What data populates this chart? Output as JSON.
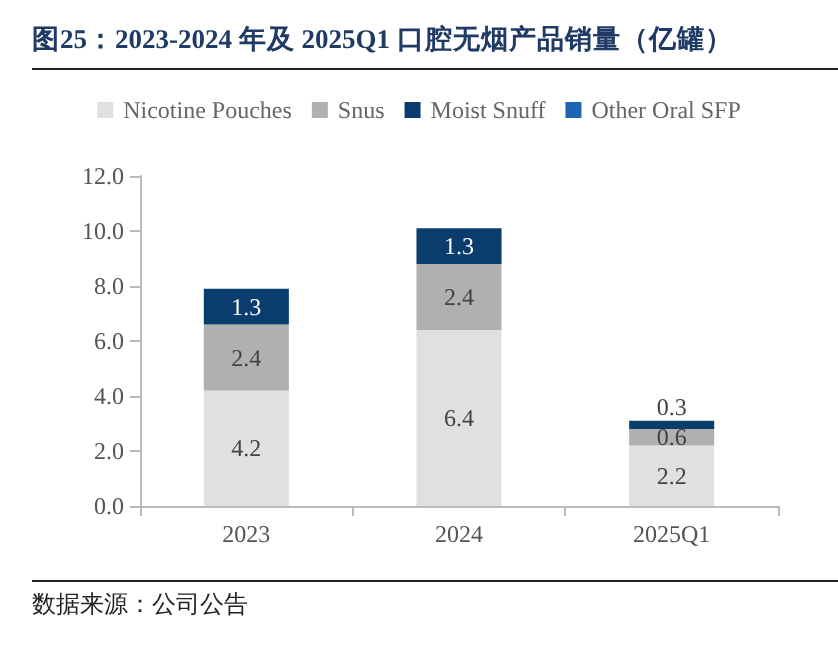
{
  "chart_data": {
    "type": "bar",
    "title": "图25：2023-2024 年及 2025Q1 口腔无烟产品销量（亿罐）",
    "annotations": [
      "数据来源：公司公告"
    ],
    "categories": [
      "2023",
      "2024",
      "2025Q1"
    ],
    "stacked": true,
    "series": [
      {
        "name": "Nicotine Pouches",
        "color": "#e0e0e0",
        "values": [
          4.2,
          6.4,
          2.2
        ],
        "value_labels": [
          "4.2",
          "6.4",
          "2.2"
        ]
      },
      {
        "name": "Snus",
        "color": "#b0b0b0",
        "values": [
          2.4,
          2.4,
          0.6
        ],
        "value_labels": [
          "2.4",
          "2.4",
          "0.6"
        ]
      },
      {
        "name": "Moist Snuff",
        "color": "#0b3c6e",
        "values": [
          1.3,
          1.3,
          0.3
        ],
        "value_labels": [
          "1.3",
          "1.3",
          "0.3"
        ]
      },
      {
        "name": "Other Oral SFP",
        "color": "#1f64b0",
        "values": [
          0,
          0,
          0
        ],
        "value_labels": [
          null,
          null,
          null
        ]
      }
    ],
    "ylim": [
      0,
      12
    ],
    "yticks": [
      {
        "value": 0,
        "label": "0.0"
      },
      {
        "value": 2,
        "label": "2.0"
      },
      {
        "value": 4,
        "label": "4.0"
      },
      {
        "value": 6,
        "label": "6.0"
      },
      {
        "value": 8,
        "label": "8.0"
      },
      {
        "value": 10,
        "label": "10.0"
      },
      {
        "value": 12,
        "label": "12.0"
      }
    ],
    "grid": false,
    "legend": "top"
  }
}
